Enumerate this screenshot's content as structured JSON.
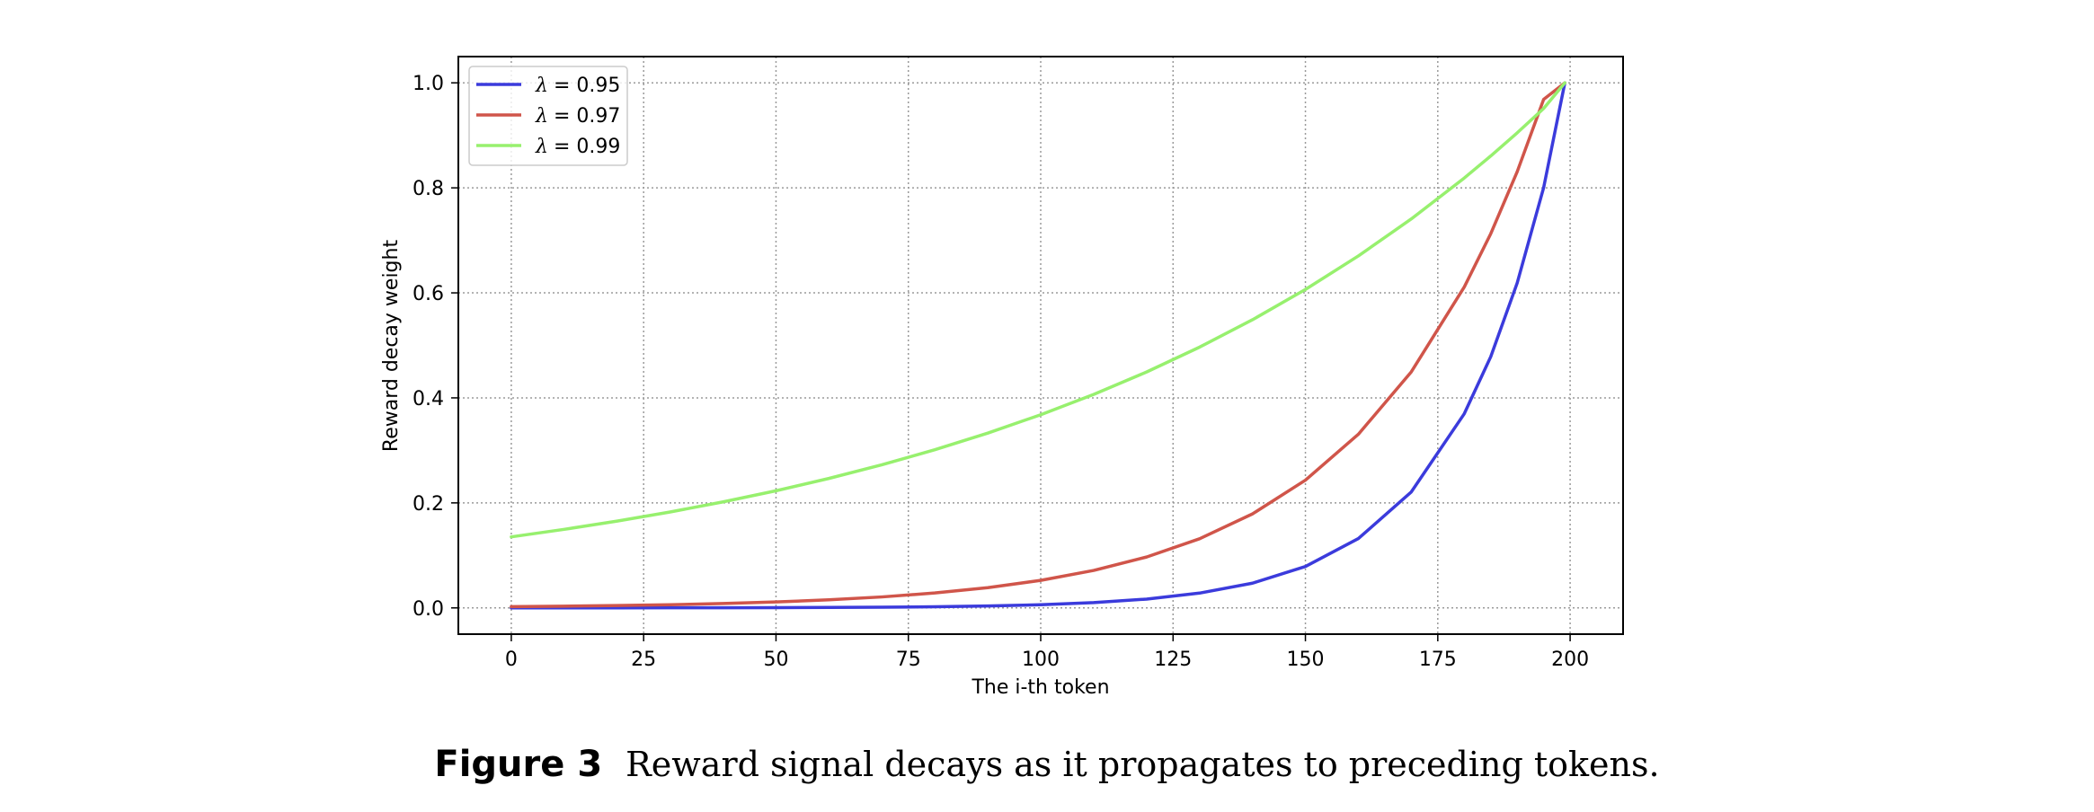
{
  "chart_data": {
    "type": "line",
    "xlabel": "The i-th token",
    "ylabel": "Reward decay weight",
    "xlim": [
      -10,
      210
    ],
    "ylim": [
      -0.05,
      1.05
    ],
    "xticks": [
      0,
      25,
      50,
      75,
      100,
      125,
      150,
      175,
      200
    ],
    "xtick_labels": [
      "0",
      "25",
      "50",
      "75",
      "100",
      "125",
      "150",
      "175",
      "200"
    ],
    "yticks": [
      0.0,
      0.2,
      0.4,
      0.6,
      0.8,
      1.0
    ],
    "ytick_labels": [
      "0.0",
      "0.2",
      "0.4",
      "0.6",
      "0.8",
      "1.0"
    ],
    "grid": true,
    "legend_position": "upper-left",
    "x": [
      0,
      10,
      20,
      30,
      40,
      50,
      60,
      70,
      80,
      90,
      100,
      110,
      120,
      130,
      140,
      150,
      160,
      170,
      180,
      185,
      190,
      195,
      199
    ],
    "series": [
      {
        "name": "λ = 0.95",
        "lambda_symbol": "λ",
        "lambda_value": "= 0.95",
        "color": "#3b3bdc",
        "values": [
          0.0,
          0.0001,
          0.0001,
          0.0002,
          0.0003,
          0.0005,
          0.0008,
          0.0013,
          0.0022,
          0.0036,
          0.006,
          0.0101,
          0.0168,
          0.0282,
          0.0471,
          0.0789,
          0.132,
          0.2209,
          0.3697,
          0.4783,
          0.6188,
          0.8006,
          1.0
        ]
      },
      {
        "name": "λ = 0.97",
        "lambda_symbol": "λ",
        "lambda_value": "= 0.97",
        "color": "#d0554a",
        "values": [
          0.0024,
          0.0033,
          0.0045,
          0.0061,
          0.0083,
          0.0113,
          0.0154,
          0.0209,
          0.0284,
          0.0386,
          0.0524,
          0.0713,
          0.0969,
          0.1317,
          0.179,
          0.2433,
          0.3307,
          0.4496,
          0.6111,
          0.7126,
          0.8307,
          0.9686,
          1.0
        ]
      },
      {
        "name": "λ = 0.99",
        "lambda_symbol": "λ",
        "lambda_value": "= 0.99",
        "color": "#97f06e",
        "values": [
          0.1353,
          0.1496,
          0.1653,
          0.1827,
          0.2019,
          0.2231,
          0.2466,
          0.2725,
          0.3012,
          0.3329,
          0.3679,
          0.4066,
          0.4493,
          0.4966,
          0.5488,
          0.6065,
          0.6703,
          0.7408,
          0.8187,
          0.8607,
          0.9048,
          0.9512,
          1.0
        ]
      }
    ]
  },
  "caption": {
    "label": "Figure 3",
    "text": "Reward signal decays as it propagates to preceding tokens."
  }
}
